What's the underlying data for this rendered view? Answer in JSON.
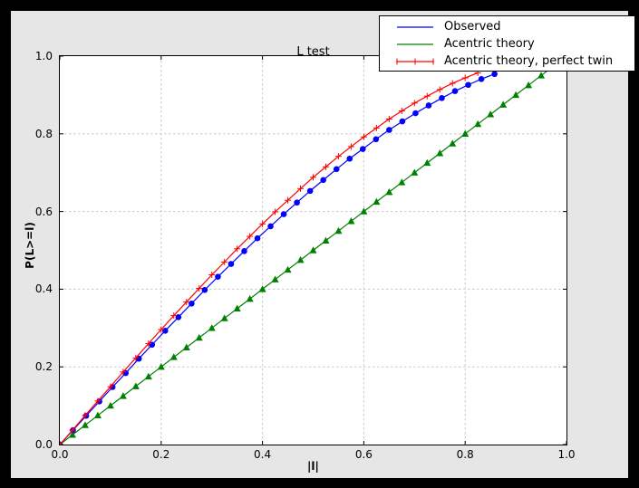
{
  "window": {
    "outer_bg": "#000000",
    "figure_bg": "#e6e6e6",
    "plot_bg": "#ffffff",
    "grid_color": "#c9c9c9",
    "axis_color": "#000000"
  },
  "chart_data": {
    "type": "line",
    "title": "L test",
    "xlabel": "|l|",
    "ylabel": "P(L>=l)",
    "xlim": [
      0.0,
      1.0
    ],
    "ylim": [
      0.0,
      1.0
    ],
    "xticks": [
      0.0,
      0.2,
      0.4,
      0.6,
      0.8,
      1.0
    ],
    "xtick_labels": [
      "0.0",
      "0.2",
      "0.4",
      "0.6",
      "0.8",
      "1.0"
    ],
    "yticks": [
      0.0,
      0.2,
      0.4,
      0.6,
      0.8,
      1.0
    ],
    "ytick_labels": [
      "0.0",
      "0.2",
      "0.4",
      "0.6",
      "0.8",
      "1.0"
    ],
    "grid": true,
    "grid_style": "dashed",
    "legend_position": "upper-right-overlapping-top",
    "series": [
      {
        "name": "Acentric theory",
        "color": "#008000",
        "marker": "triangle",
        "x": [
          0,
          0.025,
          0.05,
          0.075,
          0.1,
          0.125,
          0.15,
          0.175,
          0.2,
          0.225,
          0.25,
          0.275,
          0.3,
          0.325,
          0.35,
          0.375,
          0.4,
          0.425,
          0.45,
          0.475,
          0.5,
          0.525,
          0.55,
          0.575,
          0.6,
          0.625,
          0.65,
          0.675,
          0.7,
          0.725,
          0.75,
          0.775,
          0.8,
          0.825,
          0.85,
          0.875,
          0.9,
          0.925,
          0.95,
          0.975
        ],
        "y": [
          0,
          0.025,
          0.05,
          0.075,
          0.1,
          0.125,
          0.15,
          0.175,
          0.2,
          0.225,
          0.25,
          0.275,
          0.3,
          0.325,
          0.35,
          0.375,
          0.4,
          0.425,
          0.45,
          0.475,
          0.5,
          0.525,
          0.55,
          0.575,
          0.6,
          0.625,
          0.65,
          0.675,
          0.7,
          0.725,
          0.75,
          0.775,
          0.8,
          0.825,
          0.85,
          0.875,
          0.9,
          0.925,
          0.95,
          0.975
        ]
      },
      {
        "name": "Observed",
        "color": "#0000ff",
        "marker": "circle",
        "x": [
          0,
          0.026,
          0.052,
          0.078,
          0.104,
          0.13,
          0.156,
          0.182,
          0.208,
          0.234,
          0.26,
          0.286,
          0.312,
          0.338,
          0.364,
          0.39,
          0.416,
          0.442,
          0.468,
          0.494,
          0.52,
          0.546,
          0.572,
          0.598,
          0.624,
          0.65,
          0.676,
          0.702,
          0.728,
          0.754,
          0.78,
          0.806,
          0.832,
          0.858
        ],
        "y": [
          0,
          0.037,
          0.074,
          0.111,
          0.148,
          0.184,
          0.221,
          0.257,
          0.293,
          0.328,
          0.363,
          0.398,
          0.432,
          0.465,
          0.498,
          0.531,
          0.562,
          0.593,
          0.623,
          0.653,
          0.681,
          0.709,
          0.736,
          0.761,
          0.786,
          0.81,
          0.832,
          0.853,
          0.873,
          0.892,
          0.91,
          0.926,
          0.941,
          0.954
        ]
      },
      {
        "name": "Acentric theory, perfect twin",
        "color": "#ff0000",
        "marker": "plus",
        "x": [
          0,
          0.025,
          0.05,
          0.075,
          0.1,
          0.125,
          0.15,
          0.175,
          0.2,
          0.225,
          0.25,
          0.275,
          0.3,
          0.325,
          0.35,
          0.375,
          0.4,
          0.425,
          0.45,
          0.475,
          0.5,
          0.525,
          0.55,
          0.575,
          0.6,
          0.625,
          0.65,
          0.675,
          0.7,
          0.725,
          0.75,
          0.775,
          0.8,
          0.825
        ],
        "y": [
          0,
          0.037,
          0.075,
          0.112,
          0.149,
          0.187,
          0.223,
          0.26,
          0.296,
          0.332,
          0.367,
          0.402,
          0.437,
          0.47,
          0.504,
          0.536,
          0.568,
          0.599,
          0.629,
          0.659,
          0.688,
          0.715,
          0.742,
          0.767,
          0.792,
          0.815,
          0.838,
          0.859,
          0.879,
          0.897,
          0.914,
          0.93,
          0.944,
          0.957
        ]
      }
    ],
    "legend_order": [
      1,
      0,
      2
    ]
  }
}
